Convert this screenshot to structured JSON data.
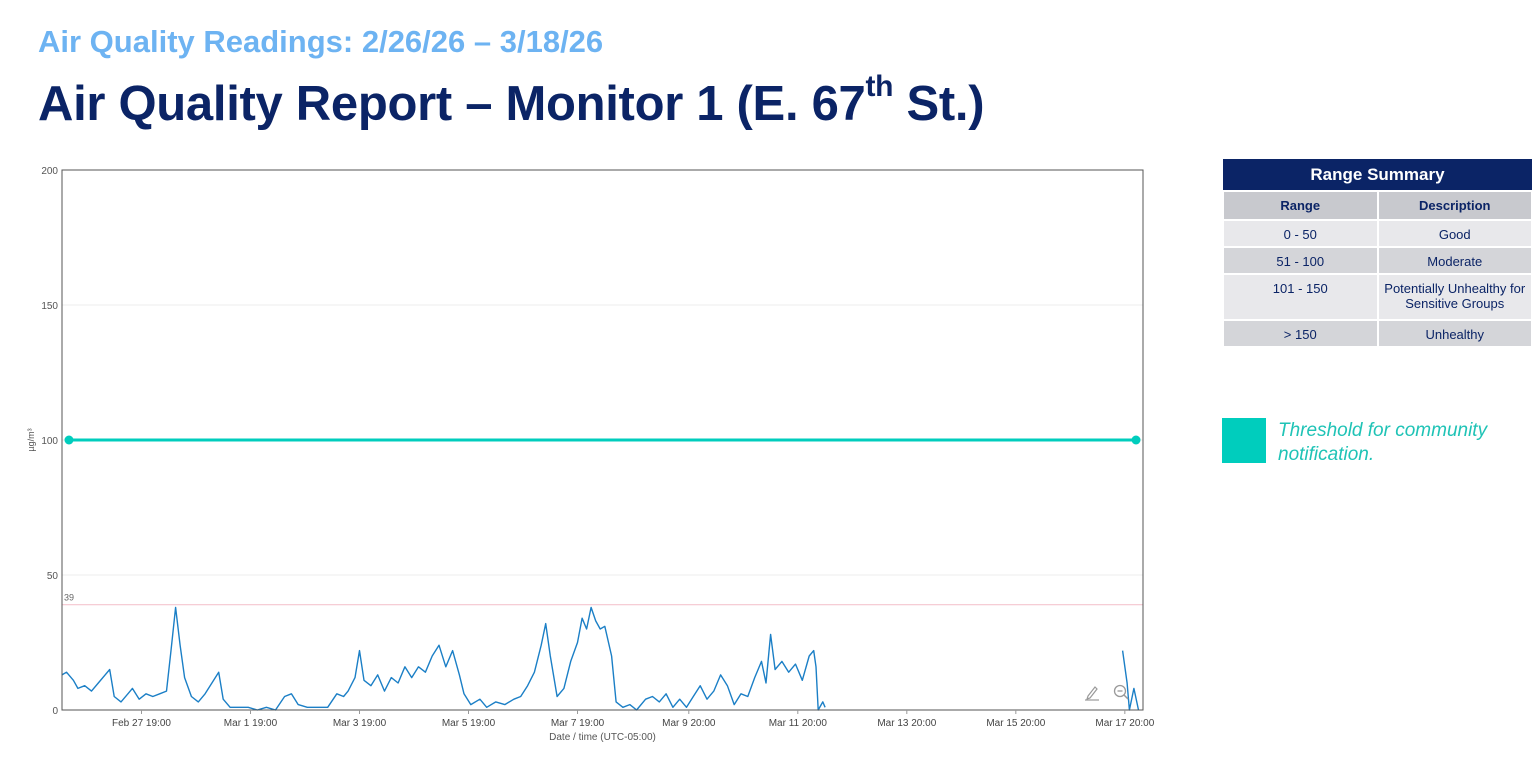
{
  "header": {
    "subtitle": "Air Quality Readings: 2/26/26 – 3/18/26",
    "title_main": "Air Quality Report – Monitor 1 (E. 67",
    "title_sup": "th",
    "title_end": " St.)"
  },
  "chart_data": {
    "type": "line",
    "title": "",
    "xlabel": "Date / time (UTC-05:00)",
    "ylabel": "µg/m³",
    "ylim": [
      0,
      200
    ],
    "yticks": [
      0,
      50,
      100,
      150,
      200
    ],
    "xlim_days_labels": [
      "Feb 26 08:00",
      "Mar 18 04:00"
    ],
    "x_tick_labels": [
      "Feb 27 19:00",
      "Mar 1 19:00",
      "Mar 3 19:00",
      "Mar 5 19:00",
      "Mar 7 19:00",
      "Mar 9 20:00",
      "Mar 11 20:00",
      "Mar 13 20:00",
      "Mar 15 20:00",
      "Mar 17 20:00"
    ],
    "x_tick_dates": [
      "2026-02-27 19:00",
      "2026-03-01 19:00",
      "2026-03-03 19:00",
      "2026-03-05 19:00",
      "2026-03-07 19:00",
      "2026-03-09 20:00",
      "2026-03-11 20:00",
      "2026-03-13 20:00",
      "2026-03-15 20:00",
      "2026-03-17 20:00"
    ],
    "grid": true,
    "threshold": {
      "value": 100,
      "color": "#00cdbd",
      "label": "Threshold for community notification."
    },
    "max_line": {
      "value": 39,
      "label": "39",
      "color": "#f4c6cf"
    },
    "series": [
      {
        "color": "#1b7fc6",
        "points": [
          [
            "2026-02-26 08:00",
            13
          ],
          [
            "2026-02-26 10:00",
            14
          ],
          [
            "2026-02-26 13:00",
            11
          ],
          [
            "2026-02-26 15:00",
            8
          ],
          [
            "2026-02-26 18:00",
            9
          ],
          [
            "2026-02-26 21:00",
            7
          ],
          [
            "2026-02-27 00:00",
            10
          ],
          [
            "2026-02-27 03:00",
            13
          ],
          [
            "2026-02-27 05:00",
            15
          ],
          [
            "2026-02-27 07:00",
            5
          ],
          [
            "2026-02-27 10:00",
            3
          ],
          [
            "2026-02-27 13:00",
            6
          ],
          [
            "2026-02-27 15:00",
            8
          ],
          [
            "2026-02-27 18:00",
            4
          ],
          [
            "2026-02-27 21:00",
            6
          ],
          [
            "2026-02-28 00:00",
            5
          ],
          [
            "2026-02-28 03:00",
            6
          ],
          [
            "2026-02-28 06:00",
            7
          ],
          [
            "2026-02-28 08:00",
            22
          ],
          [
            "2026-02-28 10:00",
            38
          ],
          [
            "2026-02-28 12:00",
            24
          ],
          [
            "2026-02-28 14:00",
            12
          ],
          [
            "2026-02-28 17:00",
            5
          ],
          [
            "2026-02-28 20:00",
            3
          ],
          [
            "2026-02-28 23:00",
            6
          ],
          [
            "2026-03-01 02:00",
            10
          ],
          [
            "2026-03-01 05:00",
            14
          ],
          [
            "2026-03-01 07:00",
            4
          ],
          [
            "2026-03-01 10:00",
            1
          ],
          [
            "2026-03-01 14:00",
            1
          ],
          [
            "2026-03-01 18:00",
            1
          ],
          [
            "2026-03-01 22:00",
            0
          ],
          [
            "2026-03-02 02:00",
            1
          ],
          [
            "2026-03-02 06:00",
            0
          ],
          [
            "2026-03-02 10:00",
            5
          ],
          [
            "2026-03-02 13:00",
            6
          ],
          [
            "2026-03-02 16:00",
            2
          ],
          [
            "2026-03-02 20:00",
            1
          ],
          [
            "2026-03-03 01:00",
            1
          ],
          [
            "2026-03-03 05:00",
            1
          ],
          [
            "2026-03-03 09:00",
            6
          ],
          [
            "2026-03-03 12:00",
            5
          ],
          [
            "2026-03-03 14:00",
            7
          ],
          [
            "2026-03-03 17:00",
            12
          ],
          [
            "2026-03-03 19:00",
            22
          ],
          [
            "2026-03-03 21:00",
            11
          ],
          [
            "2026-03-04 00:00",
            9
          ],
          [
            "2026-03-04 03:00",
            13
          ],
          [
            "2026-03-04 06:00",
            7
          ],
          [
            "2026-03-04 09:00",
            12
          ],
          [
            "2026-03-04 12:00",
            10
          ],
          [
            "2026-03-04 15:00",
            16
          ],
          [
            "2026-03-04 18:00",
            12
          ],
          [
            "2026-03-04 21:00",
            16
          ],
          [
            "2026-03-05 00:00",
            14
          ],
          [
            "2026-03-05 03:00",
            20
          ],
          [
            "2026-03-05 06:00",
            24
          ],
          [
            "2026-03-05 09:00",
            16
          ],
          [
            "2026-03-05 12:00",
            22
          ],
          [
            "2026-03-05 15:00",
            13
          ],
          [
            "2026-03-05 17:00",
            6
          ],
          [
            "2026-03-05 20:00",
            2
          ],
          [
            "2026-03-06 00:00",
            4
          ],
          [
            "2026-03-06 03:00",
            1
          ],
          [
            "2026-03-06 07:00",
            3
          ],
          [
            "2026-03-06 11:00",
            2
          ],
          [
            "2026-03-06 15:00",
            4
          ],
          [
            "2026-03-06 18:00",
            5
          ],
          [
            "2026-03-06 21:00",
            9
          ],
          [
            "2026-03-07 00:00",
            14
          ],
          [
            "2026-03-07 03:00",
            24
          ],
          [
            "2026-03-07 05:00",
            32
          ],
          [
            "2026-03-07 07:00",
            20
          ],
          [
            "2026-03-07 10:00",
            5
          ],
          [
            "2026-03-07 13:00",
            8
          ],
          [
            "2026-03-07 16:00",
            18
          ],
          [
            "2026-03-07 19:00",
            25
          ],
          [
            "2026-03-07 21:00",
            34
          ],
          [
            "2026-03-07 23:00",
            30
          ],
          [
            "2026-03-08 01:00",
            38
          ],
          [
            "2026-03-08 03:00",
            33
          ],
          [
            "2026-03-08 05:00",
            30
          ],
          [
            "2026-03-08 07:00",
            31
          ],
          [
            "2026-03-08 10:00",
            20
          ],
          [
            "2026-03-08 12:00",
            3
          ],
          [
            "2026-03-08 15:00",
            1
          ],
          [
            "2026-03-08 18:00",
            2
          ],
          [
            "2026-03-08 21:00",
            0
          ],
          [
            "2026-03-09 01:00",
            4
          ],
          [
            "2026-03-09 04:00",
            5
          ],
          [
            "2026-03-09 07:00",
            3
          ],
          [
            "2026-03-09 10:00",
            6
          ],
          [
            "2026-03-09 13:00",
            1
          ],
          [
            "2026-03-09 16:00",
            4
          ],
          [
            "2026-03-09 19:00",
            1
          ],
          [
            "2026-03-09 22:00",
            5
          ],
          [
            "2026-03-10 01:00",
            9
          ],
          [
            "2026-03-10 04:00",
            4
          ],
          [
            "2026-03-10 07:00",
            7
          ],
          [
            "2026-03-10 10:00",
            13
          ],
          [
            "2026-03-10 13:00",
            9
          ],
          [
            "2026-03-10 16:00",
            2
          ],
          [
            "2026-03-10 19:00",
            6
          ],
          [
            "2026-03-10 22:00",
            5
          ],
          [
            "2026-03-11 01:00",
            12
          ],
          [
            "2026-03-11 04:00",
            18
          ],
          [
            "2026-03-11 06:00",
            10
          ],
          [
            "2026-03-11 08:00",
            28
          ],
          [
            "2026-03-11 10:00",
            15
          ],
          [
            "2026-03-11 13:00",
            18
          ],
          [
            "2026-03-11 16:00",
            14
          ],
          [
            "2026-03-11 19:00",
            17
          ],
          [
            "2026-03-11 22:00",
            11
          ],
          [
            "2026-03-12 01:00",
            20
          ],
          [
            "2026-03-12 03:00",
            22
          ],
          [
            "2026-03-12 04:00",
            16
          ],
          [
            "2026-03-12 05:00",
            0
          ],
          [
            "2026-03-12 07:00",
            3
          ],
          [
            "2026-03-12 08:00",
            1
          ]
        ]
      },
      {
        "color": "#1b7fc6",
        "points": [
          [
            "2026-03-17 19:00",
            22
          ],
          [
            "2026-03-17 21:00",
            10
          ],
          [
            "2026-03-17 22:00",
            0
          ],
          [
            "2026-03-18 00:00",
            8
          ],
          [
            "2026-03-18 02:00",
            0
          ]
        ]
      }
    ]
  },
  "range_summary": {
    "title": "Range Summary",
    "col_range": "Range",
    "col_description": "Description",
    "rows": [
      {
        "range": "0 - 50",
        "description": "Good"
      },
      {
        "range": "51 - 100",
        "description": "Moderate"
      },
      {
        "range": "101 - 150",
        "description": "Potentially Unhealthy for Sensitive Groups"
      },
      {
        "range": "> 150",
        "description": "Unhealthy"
      }
    ]
  },
  "legend": {
    "threshold_text": "Threshold for community notification.",
    "threshold_color": "#00cdbd"
  },
  "toolbar_icons": [
    "edit-icon",
    "zoom-out-icon"
  ]
}
